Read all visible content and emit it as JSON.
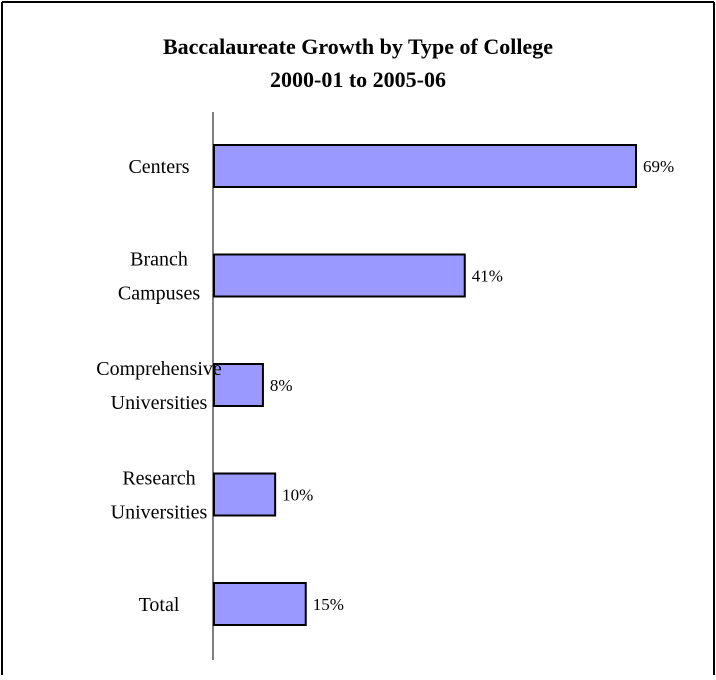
{
  "chart_data": {
    "type": "bar",
    "orientation": "horizontal",
    "title": [
      "Baccalaureate Growth by Type of College",
      "2000-01 to 2005-06"
    ],
    "categories": [
      [
        "Centers"
      ],
      [
        "Branch",
        "Campuses"
      ],
      [
        "Comprehensive",
        "Universities"
      ],
      [
        "Research",
        "Universities"
      ],
      [
        "Total"
      ]
    ],
    "values": [
      69,
      41,
      8,
      10,
      15
    ],
    "value_labels": [
      "69%",
      "41%",
      "8%",
      "10%",
      "15%"
    ],
    "unit": "%",
    "xlim": [
      0,
      69
    ],
    "grid": false,
    "legend": "none",
    "bar_color": "#9999ff",
    "bar_stroke": "#000000"
  }
}
